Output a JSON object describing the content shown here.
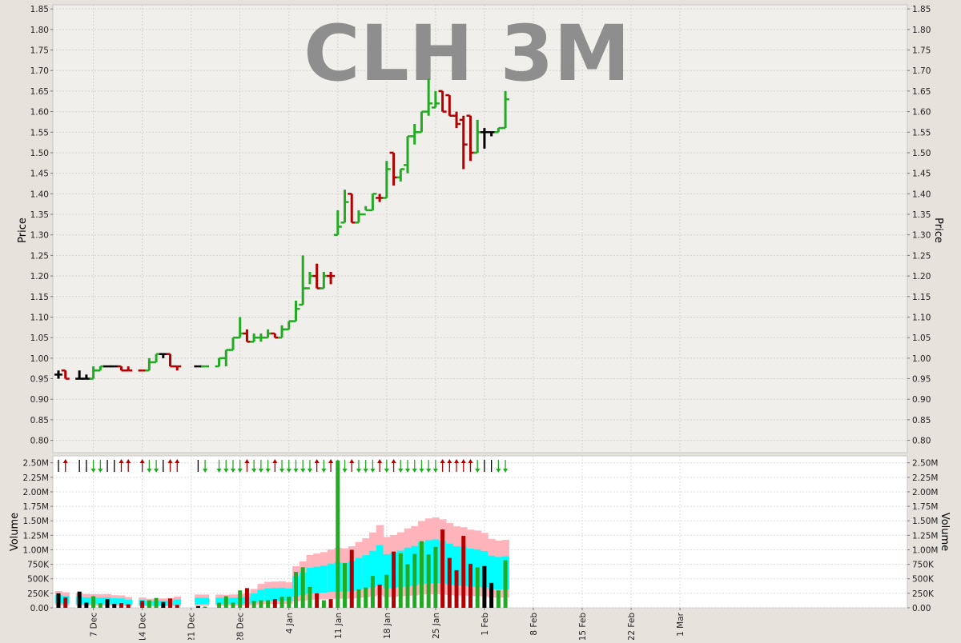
{
  "chart_data": {
    "type": "ohlc_volume",
    "title": "CLH 3M",
    "price_panel": {
      "ylabel": "Price",
      "ylim": [
        0.77,
        1.86
      ],
      "yticks": [
        "0.80",
        "0.85",
        "0.90",
        "0.95",
        "1.00",
        "1.05",
        "1.10",
        "1.15",
        "1.20",
        "1.25",
        "1.30",
        "1.35",
        "1.40",
        "1.45",
        "1.50",
        "1.55",
        "1.60",
        "1.65",
        "1.70",
        "1.75",
        "1.80",
        "1.85"
      ],
      "grid": true
    },
    "volume_panel": {
      "ylabel": "Volume",
      "ylim": [
        0,
        2620000
      ],
      "yticks": [
        "0.00",
        "250K",
        "500K",
        "750K",
        "1.00M",
        "1.25M",
        "1.50M",
        "1.75M",
        "2.00M",
        "2.25M",
        "2.50M"
      ],
      "grid": true
    },
    "xaxis": {
      "tick_labels": [
        "7 Dec",
        "14 Dec",
        "21 Dec",
        "28 Dec",
        "4 Jan",
        "11 Jan",
        "18 Jan",
        "25 Jan",
        "1 Feb",
        "8 Feb",
        "15 Feb",
        "22 Feb",
        "1 Mar"
      ],
      "tick_days": [
        5,
        12,
        19,
        26,
        33,
        40,
        47,
        54,
        61,
        68,
        75,
        82,
        89
      ]
    },
    "colors": {
      "up": "#22aa22",
      "down": "#b30000",
      "unchanged": "#000000",
      "band_outer": "#ffb3ba",
      "band_inner": "#00ffff"
    },
    "bars": [
      {
        "d": 0,
        "o": 0.96,
        "h": 0.97,
        "l": 0.95,
        "c": 0.96,
        "v": 250000,
        "dir": "flat"
      },
      {
        "d": 1,
        "o": 0.97,
        "h": 0.97,
        "l": 0.95,
        "c": 0.95,
        "v": 180000,
        "dir": "down"
      },
      {
        "d": 3,
        "o": 0.95,
        "h": 0.97,
        "l": 0.95,
        "c": 0.95,
        "v": 280000,
        "dir": "flat"
      },
      {
        "d": 4,
        "o": 0.95,
        "h": 0.96,
        "l": 0.95,
        "c": 0.95,
        "v": 90000,
        "dir": "flat"
      },
      {
        "d": 5,
        "o": 0.95,
        "h": 0.98,
        "l": 0.95,
        "c": 0.97,
        "v": 200000,
        "dir": "up"
      },
      {
        "d": 6,
        "o": 0.97,
        "h": 0.98,
        "l": 0.97,
        "c": 0.98,
        "v": 80000,
        "dir": "up"
      },
      {
        "d": 7,
        "o": 0.98,
        "h": 0.98,
        "l": 0.98,
        "c": 0.98,
        "v": 150000,
        "dir": "flat"
      },
      {
        "d": 8,
        "o": 0.98,
        "h": 0.98,
        "l": 0.98,
        "c": 0.98,
        "v": 70000,
        "dir": "flat"
      },
      {
        "d": 9,
        "o": 0.98,
        "h": 0.98,
        "l": 0.97,
        "c": 0.97,
        "v": 80000,
        "dir": "down"
      },
      {
        "d": 10,
        "o": 0.97,
        "h": 0.98,
        "l": 0.97,
        "c": 0.97,
        "v": 60000,
        "dir": "down"
      },
      {
        "d": 12,
        "o": 0.97,
        "h": 0.97,
        "l": 0.97,
        "c": 0.97,
        "v": 120000,
        "dir": "down"
      },
      {
        "d": 13,
        "o": 0.97,
        "h": 1.0,
        "l": 0.97,
        "c": 0.99,
        "v": 130000,
        "dir": "up"
      },
      {
        "d": 14,
        "o": 0.99,
        "h": 1.01,
        "l": 0.99,
        "c": 1.01,
        "v": 170000,
        "dir": "up"
      },
      {
        "d": 15,
        "o": 1.01,
        "h": 1.01,
        "l": 1.0,
        "c": 1.01,
        "v": 100000,
        "dir": "flat"
      },
      {
        "d": 16,
        "o": 1.01,
        "h": 1.01,
        "l": 0.98,
        "c": 0.98,
        "v": 160000,
        "dir": "down"
      },
      {
        "d": 17,
        "o": 0.98,
        "h": 0.98,
        "l": 0.97,
        "c": 0.98,
        "v": 50000,
        "dir": "down"
      },
      {
        "d": 20,
        "o": 0.98,
        "h": 0.98,
        "l": 0.98,
        "c": 0.98,
        "v": 30000,
        "dir": "flat"
      },
      {
        "d": 21,
        "o": 0.98,
        "h": 0.98,
        "l": 0.98,
        "c": 0.98,
        "v": 20000,
        "dir": "up"
      },
      {
        "d": 23,
        "o": 0.98,
        "h": 1.0,
        "l": 0.98,
        "c": 1.0,
        "v": 90000,
        "dir": "up"
      },
      {
        "d": 24,
        "o": 1.0,
        "h": 1.02,
        "l": 0.98,
        "c": 1.02,
        "v": 200000,
        "dir": "up"
      },
      {
        "d": 25,
        "o": 1.02,
        "h": 1.05,
        "l": 1.02,
        "c": 1.05,
        "v": 90000,
        "dir": "up"
      },
      {
        "d": 26,
        "o": 1.05,
        "h": 1.1,
        "l": 1.05,
        "c": 1.06,
        "v": 300000,
        "dir": "up"
      },
      {
        "d": 27,
        "o": 1.06,
        "h": 1.07,
        "l": 1.04,
        "c": 1.04,
        "v": 340000,
        "dir": "down"
      },
      {
        "d": 28,
        "o": 1.04,
        "h": 1.06,
        "l": 1.04,
        "c": 1.05,
        "v": 120000,
        "dir": "up"
      },
      {
        "d": 29,
        "o": 1.05,
        "h": 1.06,
        "l": 1.04,
        "c": 1.05,
        "v": 130000,
        "dir": "up"
      },
      {
        "d": 30,
        "o": 1.05,
        "h": 1.07,
        "l": 1.05,
        "c": 1.06,
        "v": 130000,
        "dir": "up"
      },
      {
        "d": 31,
        "o": 1.06,
        "h": 1.06,
        "l": 1.05,
        "c": 1.05,
        "v": 150000,
        "dir": "down"
      },
      {
        "d": 32,
        "o": 1.05,
        "h": 1.08,
        "l": 1.05,
        "c": 1.07,
        "v": 190000,
        "dir": "up"
      },
      {
        "d": 33,
        "o": 1.07,
        "h": 1.09,
        "l": 1.07,
        "c": 1.09,
        "v": 190000,
        "dir": "up"
      },
      {
        "d": 34,
        "o": 1.09,
        "h": 1.14,
        "l": 1.09,
        "c": 1.12,
        "v": 620000,
        "dir": "up"
      },
      {
        "d": 35,
        "o": 1.13,
        "h": 1.25,
        "l": 1.13,
        "c": 1.17,
        "v": 700000,
        "dir": "up"
      },
      {
        "d": 36,
        "o": 1.17,
        "h": 1.21,
        "l": 1.18,
        "c": 1.2,
        "v": 360000,
        "dir": "up"
      },
      {
        "d": 37,
        "o": 1.2,
        "h": 1.23,
        "l": 1.17,
        "c": 1.17,
        "v": 250000,
        "dir": "down"
      },
      {
        "d": 38,
        "o": 1.17,
        "h": 1.21,
        "l": 1.17,
        "c": 1.2,
        "v": 130000,
        "dir": "up"
      },
      {
        "d": 39,
        "o": 1.2,
        "h": 1.21,
        "l": 1.18,
        "c": 1.2,
        "v": 150000,
        "dir": "down"
      },
      {
        "d": 40,
        "o": 1.3,
        "h": 1.36,
        "l": 1.3,
        "c": 1.32,
        "v": 2540000,
        "dir": "up"
      },
      {
        "d": 41,
        "o": 1.33,
        "h": 1.41,
        "l": 1.33,
        "c": 1.38,
        "v": 770000,
        "dir": "up"
      },
      {
        "d": 42,
        "o": 1.4,
        "h": 1.4,
        "l": 1.33,
        "c": 1.33,
        "v": 1000000,
        "dir": "down"
      },
      {
        "d": 43,
        "o": 1.33,
        "h": 1.36,
        "l": 1.33,
        "c": 1.35,
        "v": 320000,
        "dir": "up"
      },
      {
        "d": 44,
        "o": 1.35,
        "h": 1.37,
        "l": 1.36,
        "c": 1.36,
        "v": 350000,
        "dir": "up"
      },
      {
        "d": 45,
        "o": 1.36,
        "h": 1.4,
        "l": 1.36,
        "c": 1.4,
        "v": 550000,
        "dir": "up"
      },
      {
        "d": 46,
        "o": 1.39,
        "h": 1.4,
        "l": 1.38,
        "c": 1.39,
        "v": 400000,
        "dir": "down"
      },
      {
        "d": 47,
        "o": 1.39,
        "h": 1.48,
        "l": 1.39,
        "c": 1.46,
        "v": 570000,
        "dir": "up"
      },
      {
        "d": 48,
        "o": 1.5,
        "h": 1.5,
        "l": 1.42,
        "c": 1.44,
        "v": 970000,
        "dir": "down"
      },
      {
        "d": 49,
        "o": 1.44,
        "h": 1.46,
        "l": 1.43,
        "c": 1.46,
        "v": 940000,
        "dir": "up"
      },
      {
        "d": 50,
        "o": 1.47,
        "h": 1.54,
        "l": 1.45,
        "c": 1.54,
        "v": 750000,
        "dir": "up"
      },
      {
        "d": 51,
        "o": 1.54,
        "h": 1.57,
        "l": 1.52,
        "c": 1.55,
        "v": 930000,
        "dir": "up"
      },
      {
        "d": 52,
        "o": 1.55,
        "h": 1.6,
        "l": 1.55,
        "c": 1.6,
        "v": 1150000,
        "dir": "up"
      },
      {
        "d": 53,
        "o": 1.6,
        "h": 1.68,
        "l": 1.59,
        "c": 1.62,
        "v": 920000,
        "dir": "up"
      },
      {
        "d": 54,
        "o": 1.61,
        "h": 1.65,
        "l": 1.61,
        "c": 1.62,
        "v": 1050000,
        "dir": "up"
      },
      {
        "d": 55,
        "o": 1.65,
        "h": 1.65,
        "l": 1.6,
        "c": 1.6,
        "v": 1350000,
        "dir": "down"
      },
      {
        "d": 56,
        "o": 1.64,
        "h": 1.64,
        "l": 1.59,
        "c": 1.59,
        "v": 860000,
        "dir": "down"
      },
      {
        "d": 57,
        "o": 1.59,
        "h": 1.6,
        "l": 1.56,
        "c": 1.57,
        "v": 650000,
        "dir": "down"
      },
      {
        "d": 58,
        "o": 1.58,
        "h": 1.59,
        "l": 1.46,
        "c": 1.52,
        "v": 1240000,
        "dir": "down"
      },
      {
        "d": 59,
        "o": 1.59,
        "h": 1.59,
        "l": 1.48,
        "c": 1.5,
        "v": 760000,
        "dir": "down"
      },
      {
        "d": 60,
        "o": 1.5,
        "h": 1.58,
        "l": 1.5,
        "c": 1.55,
        "v": 700000,
        "dir": "up"
      },
      {
        "d": 61,
        "o": 1.55,
        "h": 1.56,
        "l": 1.51,
        "c": 1.55,
        "v": 720000,
        "dir": "flat"
      },
      {
        "d": 62,
        "o": 1.55,
        "h": 1.55,
        "l": 1.54,
        "c": 1.55,
        "v": 430000,
        "dir": "flat"
      },
      {
        "d": 63,
        "o": 1.55,
        "h": 1.56,
        "l": 1.55,
        "c": 1.56,
        "v": 300000,
        "dir": "up"
      },
      {
        "d": 64,
        "o": 1.56,
        "h": 1.65,
        "l": 1.56,
        "c": 1.63,
        "v": 820000,
        "dir": "up"
      }
    ]
  }
}
